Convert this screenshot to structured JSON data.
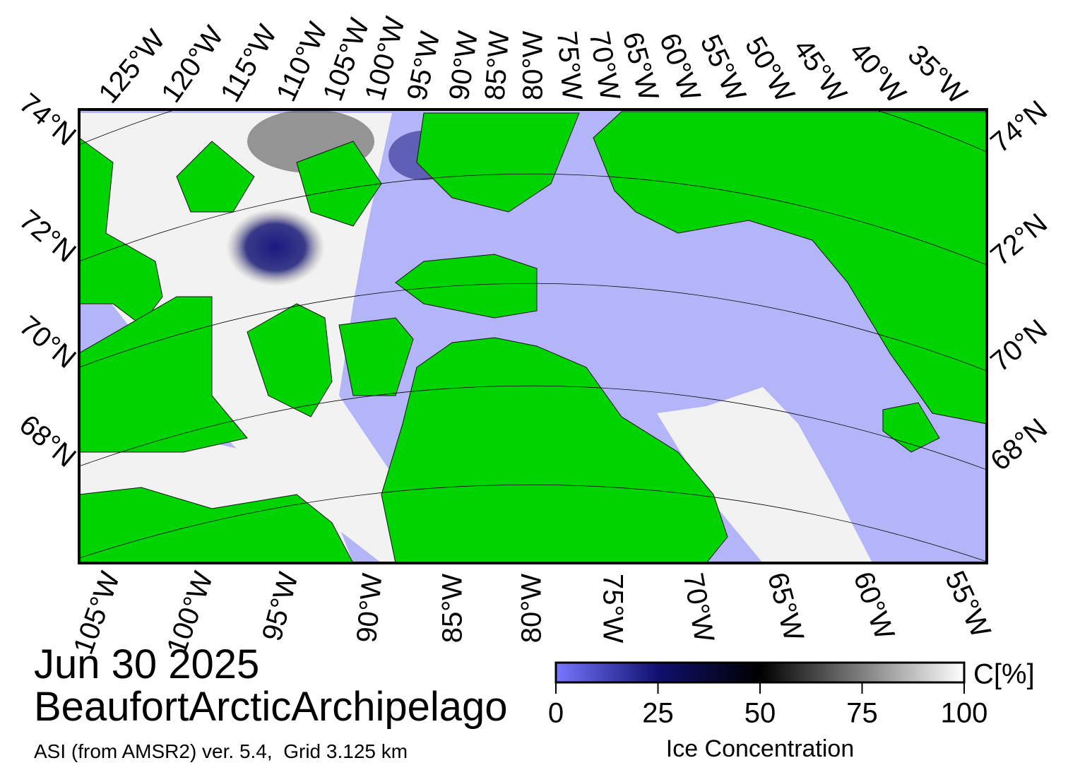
{
  "map": {
    "title": "Jun 30 2025",
    "region": "BeaufortArcticArchipelago",
    "source": "ASI (from AMSR2) ver. 5.4,  Grid 3.125 km",
    "top_longitudes": [
      "125°W",
      "120°W",
      "115°W",
      "110°W",
      "105°W",
      "100°W",
      "95°W",
      "90°W",
      "85°W",
      "80°W",
      "75°W",
      "70°W",
      "65°W",
      "60°W",
      "55°W",
      "50°W",
      "45°W",
      "40°W",
      "35°W"
    ],
    "bottom_longitudes": [
      "105°W",
      "100°W",
      "95°W",
      "90°W",
      "85°W",
      "80°W",
      "75°W",
      "70°W",
      "65°W",
      "60°W",
      "55°W"
    ],
    "left_latitudes": [
      "74°N",
      "72°N",
      "70°N",
      "68°N"
    ],
    "right_latitudes": [
      "74°N",
      "72°N",
      "70°N",
      "68°N"
    ]
  },
  "colorbar": {
    "lim": [
      0,
      100
    ],
    "ticks": [
      0,
      25,
      50,
      75,
      100
    ],
    "label": "Ice Concentration",
    "unit": "C[%]"
  }
}
